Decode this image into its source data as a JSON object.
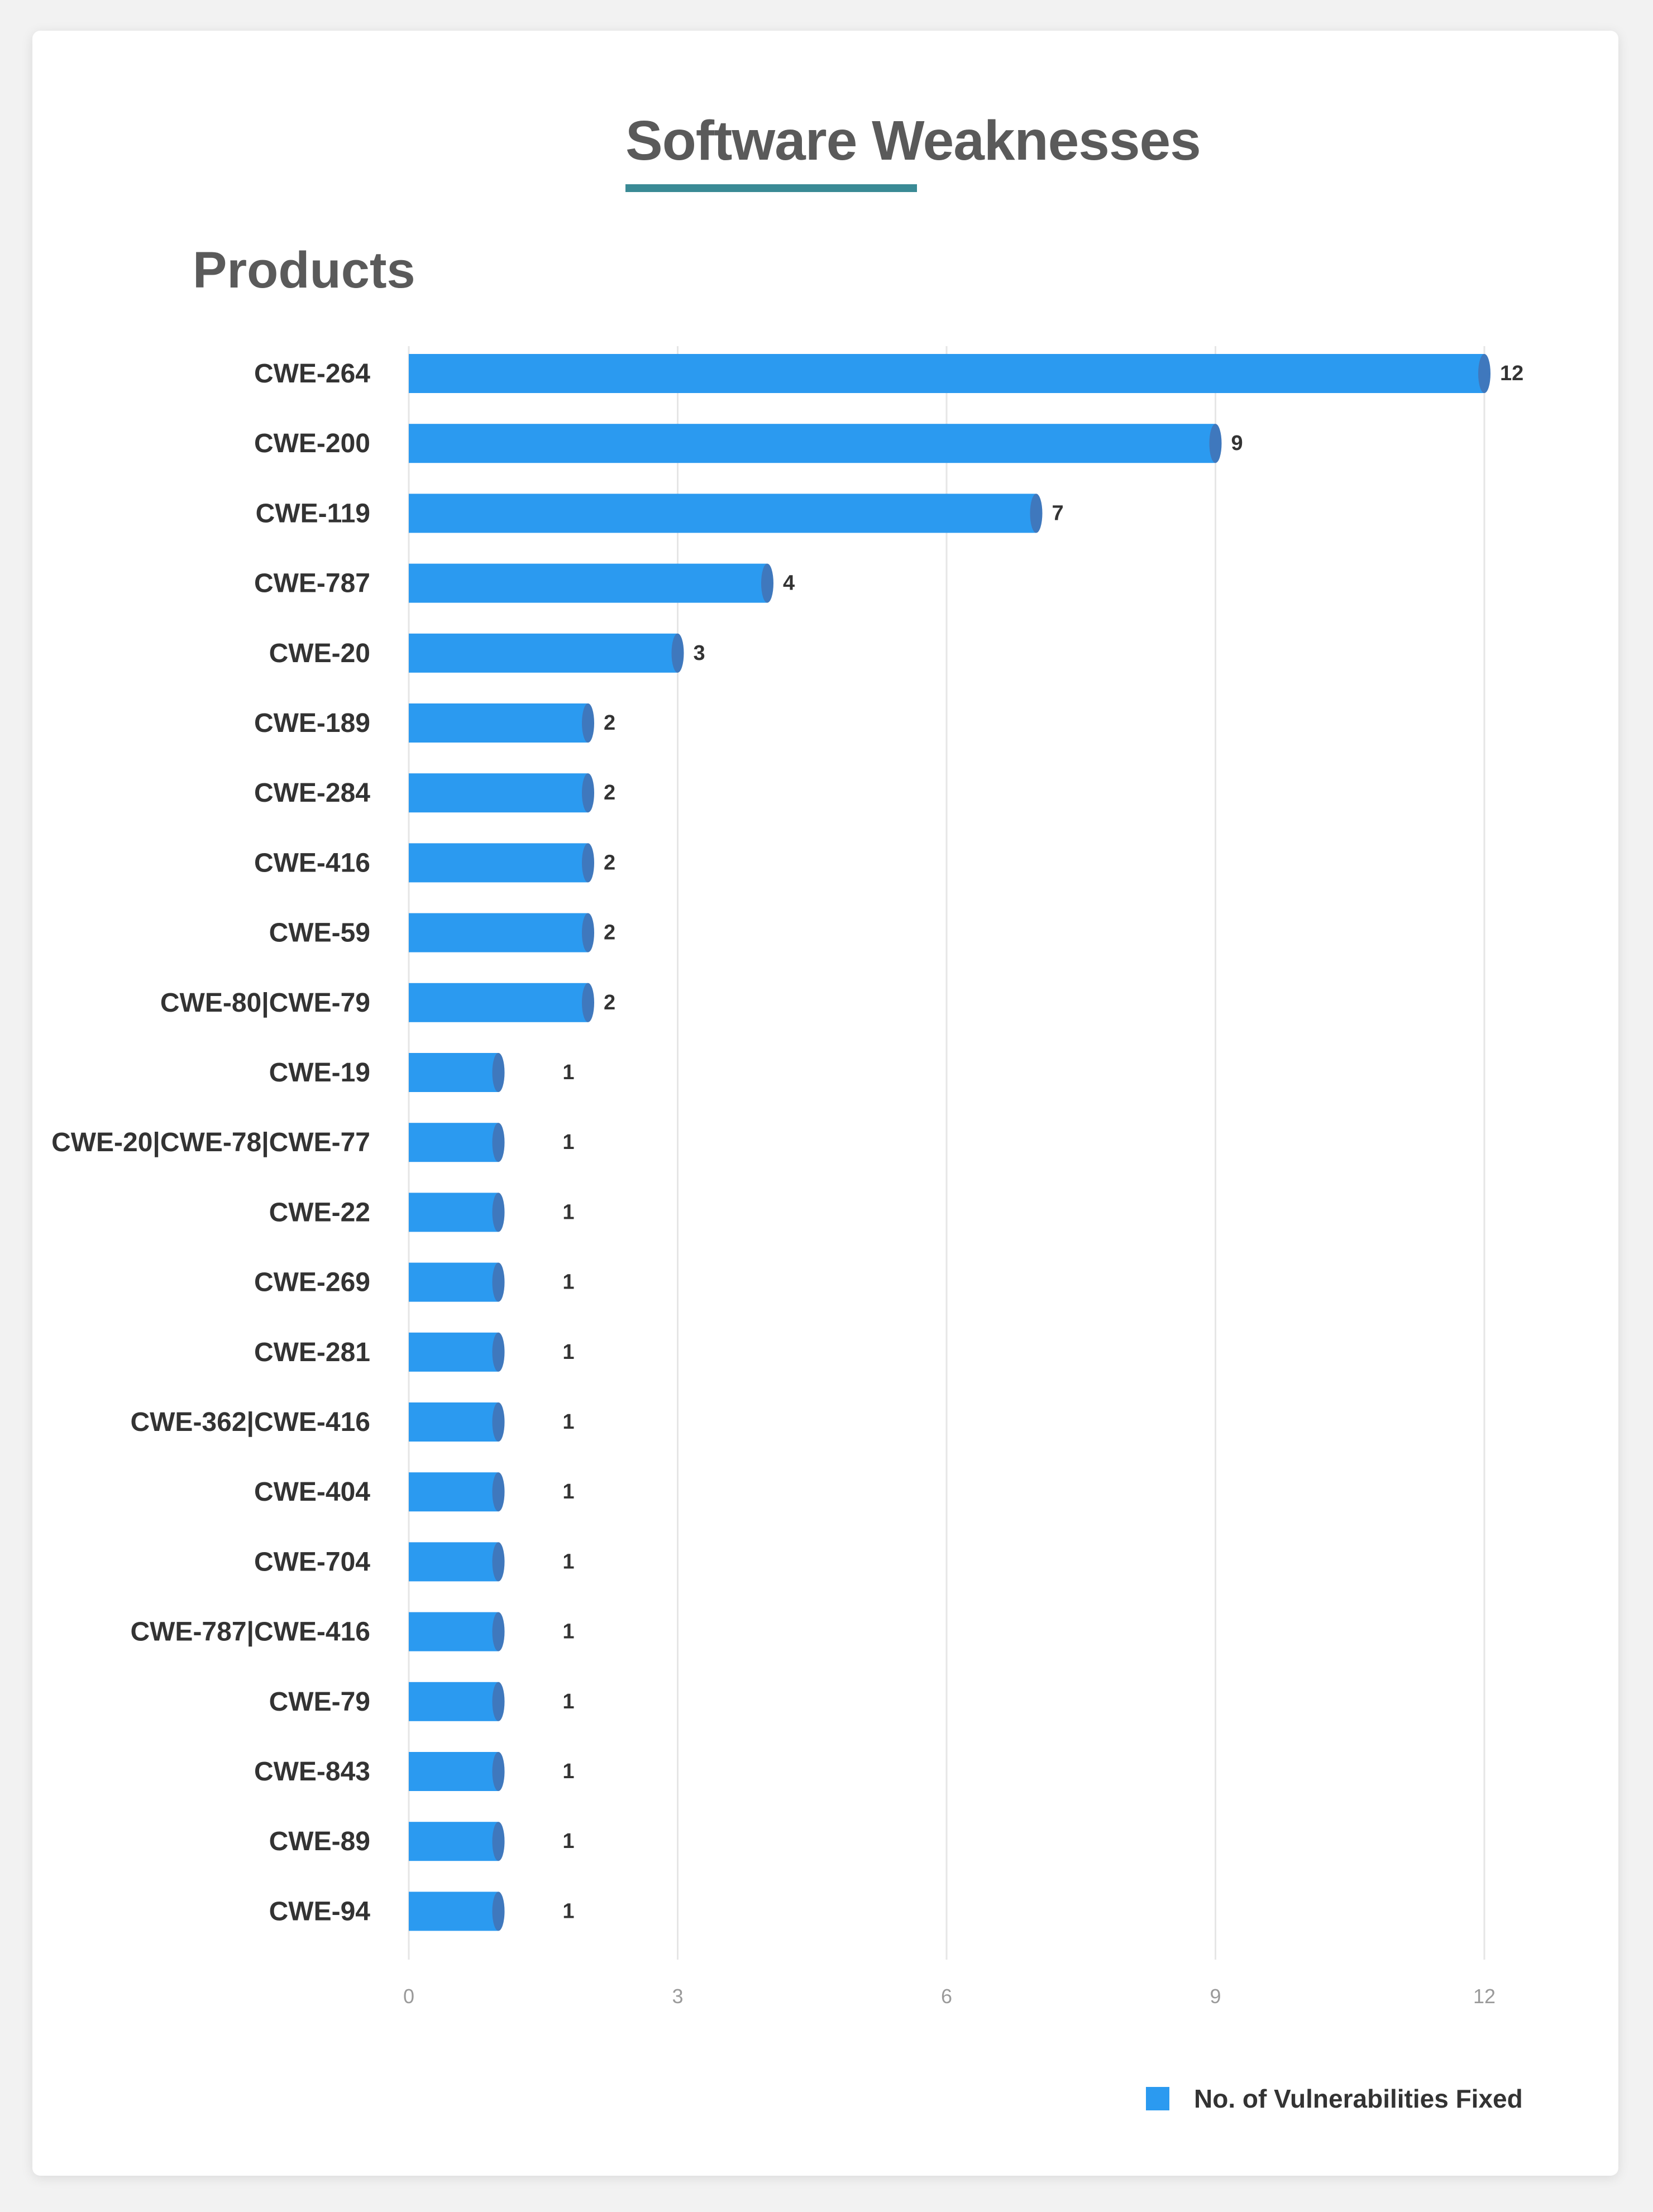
{
  "header": {
    "title": "Software Weaknesses",
    "subtitle": "Products"
  },
  "legend": {
    "label": "No. of Vulnerabilities Fixed"
  },
  "colors": {
    "bar": "#2b9af0",
    "bar_cap": "#3f78bd",
    "accent": "#3a8a95",
    "text": "#333333",
    "tick": "#9a9a9a",
    "grid": "#e6e6e6"
  },
  "chart_data": {
    "type": "bar",
    "orientation": "horizontal",
    "title": "Software Weaknesses",
    "subtitle": "Products",
    "xlabel": "",
    "ylabel": "",
    "xlim": [
      0,
      12
    ],
    "xticks": [
      0,
      3,
      6,
      9,
      12
    ],
    "grid": true,
    "legend_position": "bottom-right",
    "categories": [
      "CWE-264",
      "CWE-200",
      "CWE-119",
      "CWE-787",
      "CWE-20",
      "CWE-189",
      "CWE-284",
      "CWE-416",
      "CWE-59",
      "CWE-80|CWE-79",
      "CWE-19",
      "CWE-20|CWE-78|CWE-77",
      "CWE-22",
      "CWE-269",
      "CWE-281",
      "CWE-362|CWE-416",
      "CWE-404",
      "CWE-704",
      "CWE-787|CWE-416",
      "CWE-79",
      "CWE-843",
      "CWE-89",
      "CWE-94"
    ],
    "series": [
      {
        "name": "No. of Vulnerabilities Fixed",
        "values": [
          12,
          9,
          7,
          4,
          3,
          2,
          2,
          2,
          2,
          2,
          1,
          1,
          1,
          1,
          1,
          1,
          1,
          1,
          1,
          1,
          1,
          1,
          1
        ]
      }
    ]
  }
}
